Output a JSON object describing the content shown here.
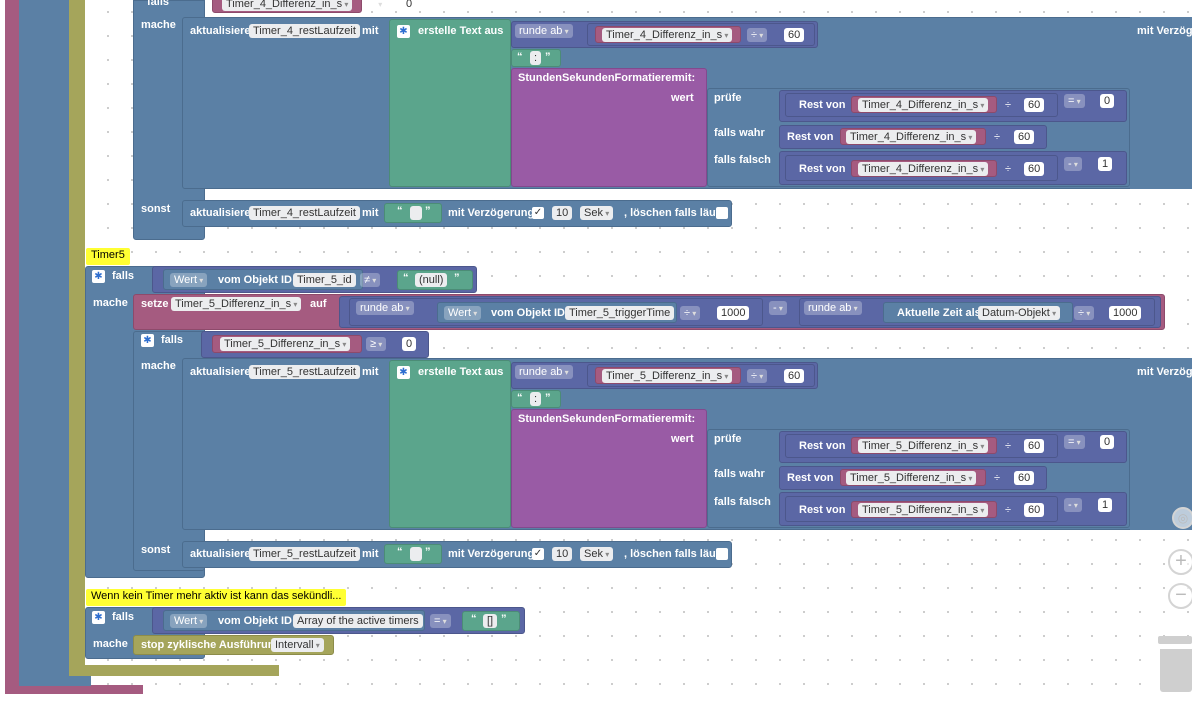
{
  "kw": {
    "falls": "falls",
    "mache": "mache",
    "sonst": "sonst",
    "setze": "setze",
    "auf": "auf",
    "aktualisiere": "aktualisiere",
    "mit": "mit",
    "erstelle_text": "erstelle Text aus",
    "runde_ab": "runde ab",
    "div": "÷",
    "minus": "-",
    "eq": "=",
    "neq": "≠",
    "gte": "≥",
    "stunden": "StundenSekundenFormatieren",
    "mit_colon": "mit:",
    "wert": "wert",
    "pruefe": "prüfe",
    "falls_wahr": "falls wahr",
    "falls_falsch": "falls falsch",
    "rest_von": "Rest von",
    "mit_verzoegerung": "mit Verzögerung",
    "mit_verzoeg_trunc": "mit Verzöge",
    "sek": "Sek",
    "loeschen": ", löschen falls läuft",
    "wert_dd": "Wert",
    "vom_objekt_id": "vom Objekt ID",
    "aktuelle_zeit": "Aktuelle Zeit als",
    "datum_objekt": "Datum-Objekt",
    "stop": "stop zyklische Ausführung",
    "intervall": "Intervall",
    "null": "(null)",
    "colon": ":",
    "empty_arr": "[]",
    "check": "✓"
  },
  "vars": {
    "t4_diff": "Timer_4_Differenz_in_s",
    "t4_rest": "Timer_4_restLaufzeit",
    "t5_diff": "Timer_5_Differenz_in_s",
    "t5_rest": "Timer_5_restLaufzeit",
    "t5_id": "Timer_5_id",
    "t5_trigger": "Timer_5_triggerTime",
    "active_timers": "Array of the active timers"
  },
  "nums": {
    "zero": "0",
    "sixty": "60",
    "one": "1",
    "thousand": "1000",
    "ten": "10"
  },
  "notes": {
    "timer5": "Timer5",
    "kein_timer": "Wenn kein Timer mehr aktiv ist kann das sekündli..."
  },
  "icons": [
    "gear-icon",
    "zoom-in-icon",
    "zoom-out-icon",
    "trash-icon",
    "recenter-icon"
  ],
  "colors": {
    "logic": "#5b80a5",
    "math": "#5b67a5",
    "text": "#5ba58c",
    "procedure": "#995ba5",
    "variable": "#a55b80",
    "timeouts": "#a5a55b",
    "comment": "#ffff33"
  }
}
